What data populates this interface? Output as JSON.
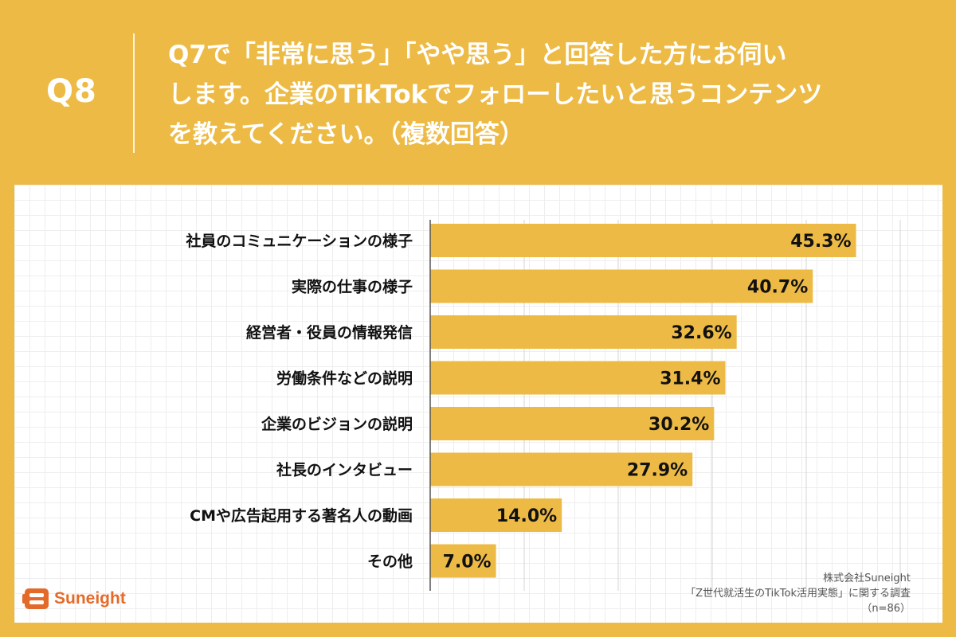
{
  "header": {
    "question_number": "Q8",
    "question_lines": [
      "Q7で「非常に思う」「やや思う」と回答した方にお伺い",
      "します。企業のTikTokでフォローしたいと思うコンテンツ",
      "を教えてください。（複数回答）"
    ]
  },
  "chart_data": {
    "type": "bar",
    "orientation": "horizontal",
    "categories": [
      "社員のコミュニケーションの様子",
      "実際の仕事の様子",
      "経営者・役員の情報発信",
      "労働条件などの説明",
      "企業のビジョンの説明",
      "社長のインタビュー",
      "CMや広告起用する著名人の動画",
      "その他"
    ],
    "values": [
      45.3,
      40.7,
      32.6,
      31.4,
      30.2,
      27.9,
      14.0,
      7.0
    ],
    "value_labels": [
      "45.3%",
      "40.7%",
      "32.6%",
      "31.4%",
      "30.2%",
      "27.9%",
      "14.0%",
      "7.0%"
    ],
    "xlim": [
      0,
      50
    ],
    "grid": true,
    "bar_color": "#EDBB45"
  },
  "source": {
    "company": "株式会社Suneight",
    "survey": "「Z世代就活生のTikTok活用実態」に関する調査",
    "sample": "（n=86）"
  },
  "brand": {
    "name": "Suneight",
    "icon": "suneight-logo-icon",
    "color": "#E46A2A"
  },
  "colors": {
    "background": "#EDBB45",
    "panel": "#ffffff",
    "text_header": "#ffffff"
  }
}
